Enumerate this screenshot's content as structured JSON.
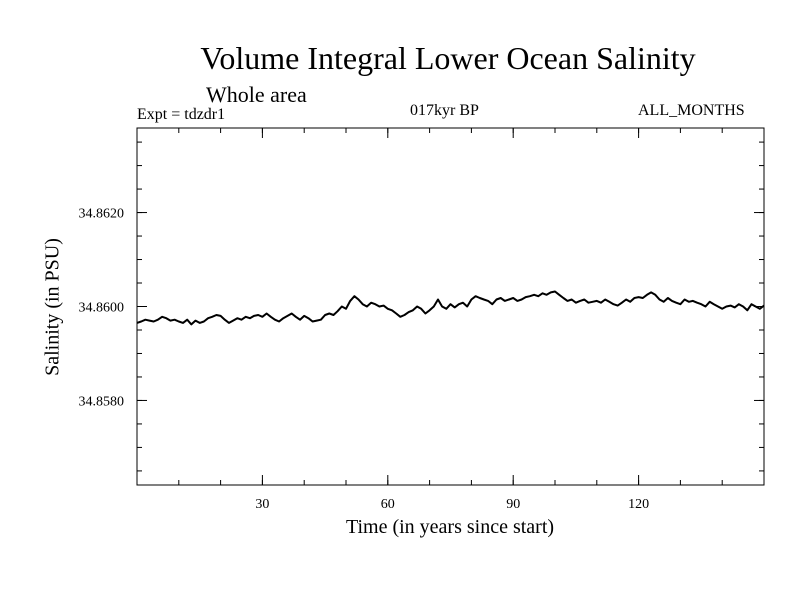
{
  "chart_data": {
    "type": "line",
    "title": "Volume Integral Lower Ocean Salinity",
    "subtitle": "Whole area",
    "experiment_label": "Expt = tdzdr1",
    "period_label": "017kyr BP",
    "months_label": "ALL_MONTHS",
    "xlabel": "Time (in years since start)",
    "ylabel": "Salinity (in PSU)",
    "xlim": [
      0,
      150
    ],
    "ylim": [
      34.8562,
      34.8638
    ],
    "x_major_ticks": [
      30,
      60,
      90,
      120
    ],
    "x_tick_labels": [
      "30",
      "60",
      "90",
      "120"
    ],
    "x_minor_step": 10,
    "y_major_ticks": [
      34.858,
      34.86,
      34.862
    ],
    "y_tick_labels": [
      "34.8580",
      "34.8600",
      "34.8620"
    ],
    "y_minor_step": 0.0005,
    "series": [
      {
        "name": "Volume Integral Lower Ocean Salinity",
        "x": [
          0,
          1,
          2,
          3,
          4,
          5,
          6,
          7,
          8,
          9,
          10,
          11,
          12,
          13,
          14,
          15,
          16,
          17,
          18,
          19,
          20,
          21,
          22,
          23,
          24,
          25,
          26,
          27,
          28,
          29,
          30,
          31,
          32,
          33,
          34,
          35,
          36,
          37,
          38,
          39,
          40,
          41,
          42,
          43,
          44,
          45,
          46,
          47,
          48,
          49,
          50,
          51,
          52,
          53,
          54,
          55,
          56,
          57,
          58,
          59,
          60,
          61,
          62,
          63,
          64,
          65,
          66,
          67,
          68,
          69,
          70,
          71,
          72,
          73,
          74,
          75,
          76,
          77,
          78,
          79,
          80,
          81,
          82,
          83,
          84,
          85,
          86,
          87,
          88,
          89,
          90,
          91,
          92,
          93,
          94,
          95,
          96,
          97,
          98,
          99,
          100,
          101,
          102,
          103,
          104,
          105,
          106,
          107,
          108,
          109,
          110,
          111,
          112,
          113,
          114,
          115,
          116,
          117,
          118,
          119,
          120,
          121,
          122,
          123,
          124,
          125,
          126,
          127,
          128,
          129,
          130,
          131,
          132,
          133,
          134,
          135,
          136,
          137,
          138,
          139,
          140,
          141,
          142,
          143,
          144,
          145,
          146,
          147,
          148,
          149,
          150
        ],
        "y": [
          34.85965,
          34.85968,
          34.85972,
          34.8597,
          34.85968,
          34.85972,
          34.85978,
          34.85975,
          34.8597,
          34.85972,
          34.85968,
          34.85965,
          34.85972,
          34.85962,
          34.8597,
          34.85965,
          34.85968,
          34.85975,
          34.85978,
          34.85982,
          34.8598,
          34.85972,
          34.85965,
          34.8597,
          34.85975,
          34.85972,
          34.85978,
          34.85975,
          34.8598,
          34.85982,
          34.85978,
          34.85985,
          34.85978,
          34.85972,
          34.85968,
          34.85975,
          34.8598,
          34.85985,
          34.85978,
          34.85972,
          34.8598,
          34.85975,
          34.85968,
          34.8597,
          34.85972,
          34.85982,
          34.85985,
          34.85982,
          34.8599,
          34.86,
          34.85995,
          34.86012,
          34.86022,
          34.86015,
          34.86005,
          34.86,
          34.86008,
          34.86005,
          34.86,
          34.86002,
          34.85995,
          34.85992,
          34.85985,
          34.85978,
          34.85982,
          34.85988,
          34.85992,
          34.86,
          34.85995,
          34.85985,
          34.85992,
          34.86,
          34.86015,
          34.86,
          34.85995,
          34.86005,
          34.85998,
          34.86005,
          34.86008,
          34.86,
          34.86015,
          34.86022,
          34.86018,
          34.86015,
          34.86012,
          34.86005,
          34.86015,
          34.86018,
          34.86012,
          34.86015,
          34.86018,
          34.86012,
          34.86015,
          34.8602,
          34.86022,
          34.86025,
          34.86022,
          34.86028,
          34.86025,
          34.8603,
          34.86032,
          34.86025,
          34.86018,
          34.86012,
          34.86015,
          34.86008,
          34.86012,
          34.86015,
          34.86008,
          34.8601,
          34.86012,
          34.86008,
          34.86015,
          34.8601,
          34.86005,
          34.86002,
          34.86008,
          34.86015,
          34.8601,
          34.86018,
          34.8602,
          34.86018,
          34.86025,
          34.8603,
          34.86025,
          34.86015,
          34.8601,
          34.86018,
          34.86012,
          34.86008,
          34.86005,
          34.86015,
          34.8601,
          34.86012,
          34.86008,
          34.86005,
          34.86,
          34.8601,
          34.86005,
          34.86,
          34.85995,
          34.86,
          34.86002,
          34.85998,
          34.86005,
          34.86,
          34.85992,
          34.86005,
          34.86,
          34.85995,
          34.86002
        ]
      }
    ]
  }
}
